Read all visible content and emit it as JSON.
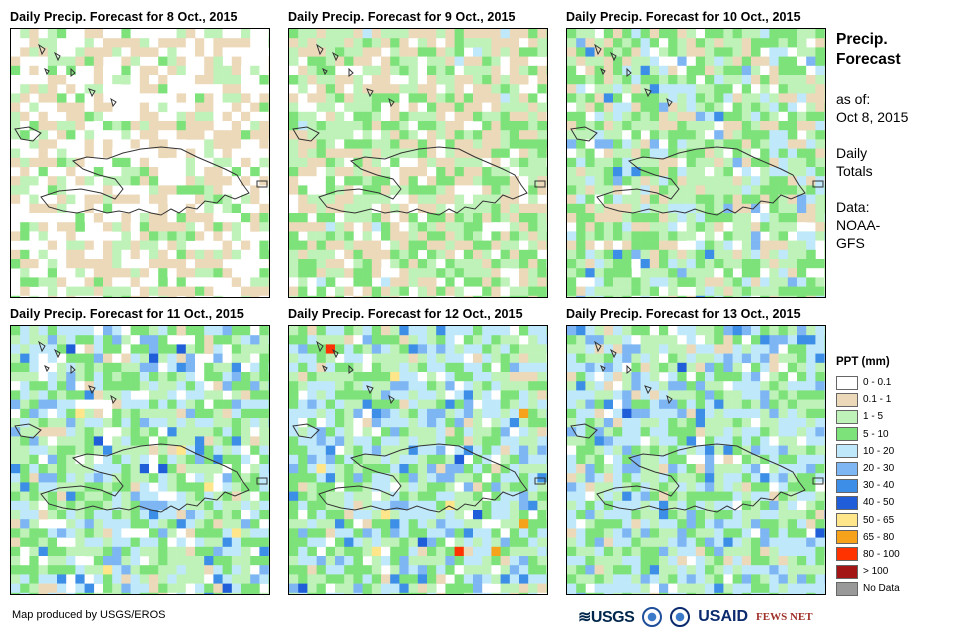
{
  "panels": [
    {
      "title": "Daily Precip. Forecast for 8 Oct., 2015"
    },
    {
      "title": "Daily Precip. Forecast for 9 Oct., 2015"
    },
    {
      "title": "Daily Precip. Forecast for 10 Oct., 2015"
    },
    {
      "title": "Daily Precip. Forecast for 11 Oct., 2015"
    },
    {
      "title": "Daily Precip. Forecast for 12 Oct., 2015"
    },
    {
      "title": "Daily Precip. Forecast for 13 Oct., 2015"
    }
  ],
  "info": {
    "title_line1": "Precip.",
    "title_line2": "Forecast",
    "asof_label": "as of:",
    "asof_date": "Oct 8, 2015",
    "totals_line1": "Daily",
    "totals_line2": "Totals",
    "data_label": "Data:",
    "data_line1": "NOAA-",
    "data_line2": "GFS"
  },
  "legend": {
    "title": "PPT (mm)",
    "items": [
      {
        "label": "0 - 0.1",
        "color": "#ffffff"
      },
      {
        "label": "0.1 - 1",
        "color": "#ecd9b9"
      },
      {
        "label": "1 - 5",
        "color": "#bff2b8"
      },
      {
        "label": "5 - 10",
        "color": "#7ee27a"
      },
      {
        "label": "10 - 20",
        "color": "#bfe9fb"
      },
      {
        "label": "20 - 30",
        "color": "#7db6f2"
      },
      {
        "label": "30 - 40",
        "color": "#3d8ee6"
      },
      {
        "label": "40 - 50",
        "color": "#1f5ed8"
      },
      {
        "label": "50 - 65",
        "color": "#ffe68a"
      },
      {
        "label": "65 - 80",
        "color": "#f7a21b"
      },
      {
        "label": "80 - 100",
        "color": "#ff3300"
      },
      {
        "label": "> 100",
        "color": "#a31515"
      },
      {
        "label": "No Data",
        "color": "#999999"
      }
    ]
  },
  "footer": {
    "credit": "Map produced by USGS/EROS",
    "logo_usgs": "≋USGS",
    "logo_usaid": "USAID",
    "logo_fews": "FEWS NET"
  },
  "panel_profiles": [
    {
      "dist": [
        0.45,
        0.3,
        0.16,
        0.09,
        0,
        0,
        0,
        0,
        0,
        0,
        0,
        0
      ]
    },
    {
      "dist": [
        0.16,
        0.3,
        0.3,
        0.22,
        0.02,
        0,
        0,
        0,
        0,
        0,
        0,
        0
      ]
    },
    {
      "dist": [
        0.08,
        0.16,
        0.32,
        0.28,
        0.12,
        0.03,
        0.01,
        0,
        0,
        0,
        0,
        0
      ]
    },
    {
      "dist": [
        0.1,
        0.05,
        0.28,
        0.26,
        0.22,
        0.06,
        0.02,
        0.01,
        0.005,
        0,
        0,
        0
      ]
    },
    {
      "dist": [
        0.06,
        0.04,
        0.26,
        0.24,
        0.28,
        0.08,
        0.03,
        0.01,
        0.005,
        0.003,
        0.002,
        0
      ]
    },
    {
      "dist": [
        0.08,
        0.05,
        0.26,
        0.22,
        0.26,
        0.1,
        0.02,
        0.01,
        0,
        0,
        0,
        0
      ]
    }
  ]
}
